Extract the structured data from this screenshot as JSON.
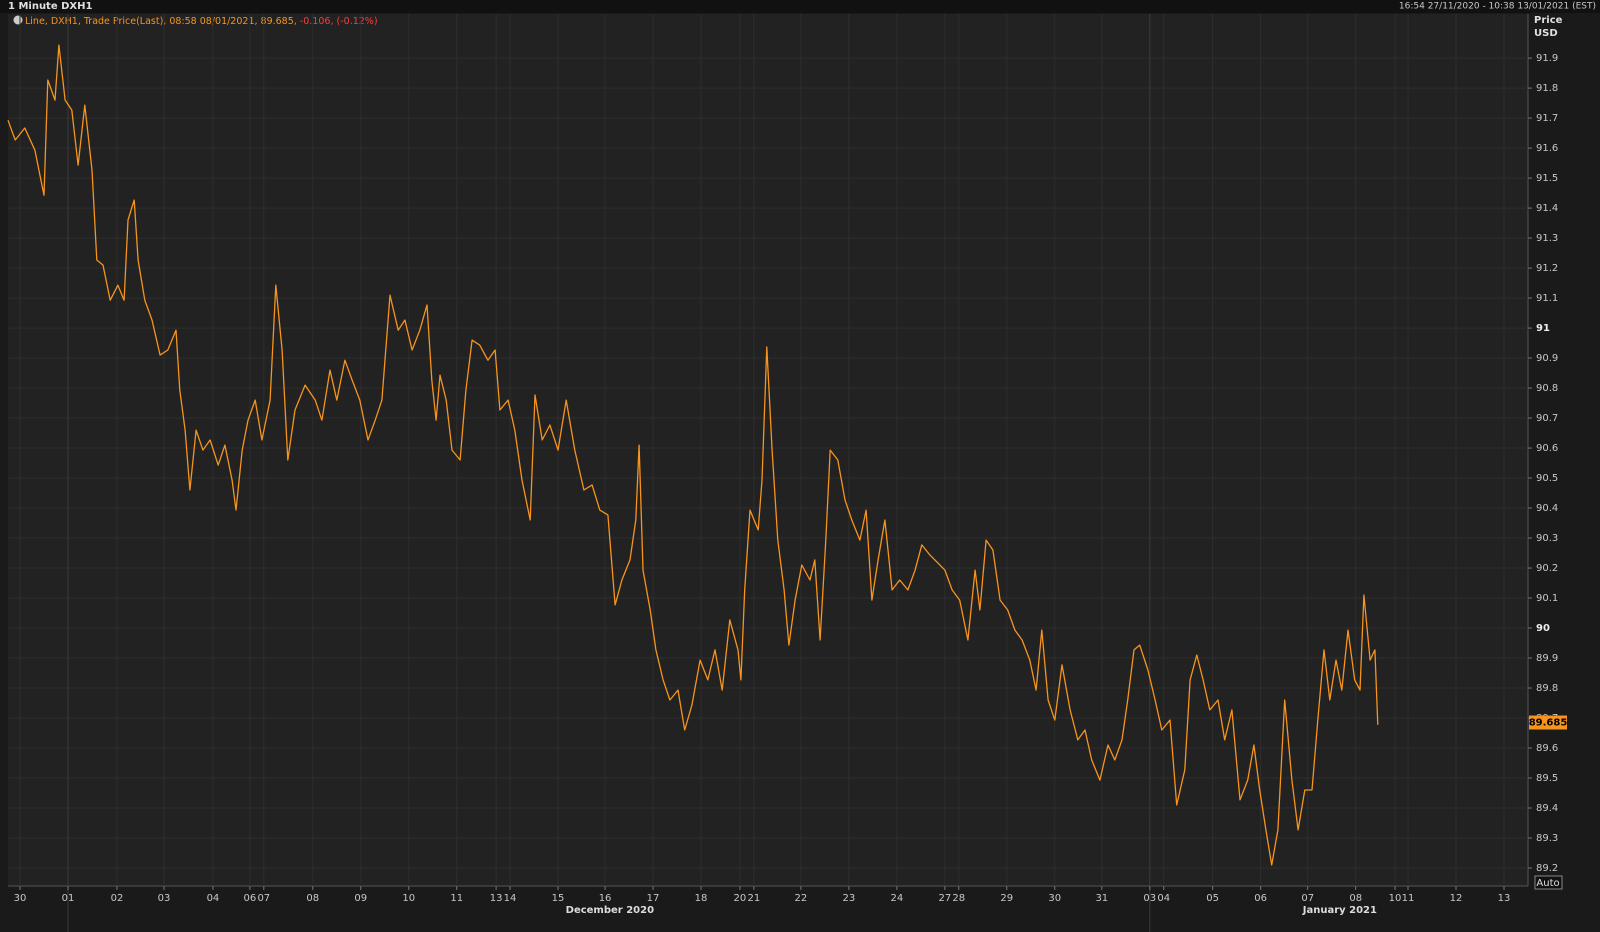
{
  "header": {
    "title": "1 Minute DXH1",
    "range": "16:54 27/11/2020 - 10:38 13/01/2021 (EST)"
  },
  "chart_data": {
    "type": "line",
    "legend": {
      "text": "Line, DXH1, Trade Price(Last), 08:58 08/01/2021, 89.685,",
      "change": "-0.106,",
      "change_pct": "(-0.12%)"
    },
    "y_axis_title": "Price",
    "y_axis_unit": "USD",
    "last_value": 89.685,
    "auto_button": "Auto",
    "grid": true,
    "xlim": [
      -0.25,
      31.42
    ],
    "ylim": [
      89.14,
      92.047
    ],
    "yticks": [
      89.2,
      89.3,
      89.4,
      89.5,
      89.6,
      89.7,
      89.8,
      89.9,
      90,
      90.1,
      90.2,
      90.3,
      90.4,
      90.5,
      90.6,
      90.7,
      90.8,
      90.9,
      91,
      91.1,
      91.2,
      91.3,
      91.4,
      91.5,
      91.6,
      91.7,
      91.8,
      91.9
    ],
    "xticks": [
      {
        "value": 0,
        "label": "30"
      },
      {
        "value": 1,
        "label": "01"
      },
      {
        "value": 2.02,
        "label": "02"
      },
      {
        "value": 3,
        "label": "03"
      },
      {
        "value": 4.02,
        "label": "04"
      },
      {
        "value": 4.79,
        "label": "06"
      },
      {
        "value": 5.08,
        "label": "07"
      },
      {
        "value": 6.1,
        "label": "08"
      },
      {
        "value": 7.1,
        "label": "09"
      },
      {
        "value": 8.1,
        "label": "10"
      },
      {
        "value": 9.1,
        "label": "11"
      },
      {
        "value": 9.92,
        "label": "13"
      },
      {
        "value": 10.21,
        "label": "14"
      },
      {
        "value": 11.21,
        "label": "15"
      },
      {
        "value": 12.19,
        "label": "16"
      },
      {
        "value": 13.19,
        "label": "17"
      },
      {
        "value": 14.19,
        "label": "18"
      },
      {
        "value": 15,
        "label": "20"
      },
      {
        "value": 15.29,
        "label": "21"
      },
      {
        "value": 16.27,
        "label": "22"
      },
      {
        "value": 17.27,
        "label": "23"
      },
      {
        "value": 18.27,
        "label": "24"
      },
      {
        "value": 19.27,
        "label": "27"
      },
      {
        "value": 19.56,
        "label": "28"
      },
      {
        "value": 20.56,
        "label": "29"
      },
      {
        "value": 21.56,
        "label": "30"
      },
      {
        "value": 22.54,
        "label": "31"
      },
      {
        "value": 23.54,
        "label": "03"
      },
      {
        "value": 23.83,
        "label": "04"
      },
      {
        "value": 24.85,
        "label": "05"
      },
      {
        "value": 25.85,
        "label": "06"
      },
      {
        "value": 26.83,
        "label": "07"
      },
      {
        "value": 27.83,
        "label": "08"
      },
      {
        "value": 28.65,
        "label": "10"
      },
      {
        "value": 28.92,
        "label": "11"
      },
      {
        "value": 29.92,
        "label": "12"
      },
      {
        "value": 30.92,
        "label": "13"
      }
    ],
    "months": [
      {
        "label": "December 2020",
        "start": 1,
        "center": 12.29
      },
      {
        "label": "January 2021",
        "start": 23.54,
        "center": 27.5
      }
    ],
    "series": [
      {
        "name": "DXH1",
        "color": "#f7941d",
        "x": [
          -0.25,
          -0.1,
          0.1,
          0.31,
          0.5,
          0.58,
          0.73,
          0.81,
          0.94,
          1.08,
          1.21,
          1.35,
          1.5,
          1.6,
          1.73,
          1.88,
          2.04,
          2.17,
          2.25,
          2.38,
          2.46,
          2.6,
          2.75,
          2.92,
          3.08,
          3.25,
          3.33,
          3.44,
          3.54,
          3.67,
          3.81,
          3.96,
          4.13,
          4.27,
          4.42,
          4.5,
          4.63,
          4.75,
          4.9,
          5.04,
          5.21,
          5.33,
          5.46,
          5.58,
          5.73,
          5.94,
          6.15,
          6.29,
          6.46,
          6.6,
          6.77,
          6.92,
          7.08,
          7.25,
          7.4,
          7.54,
          7.71,
          7.88,
          8.02,
          8.17,
          8.33,
          8.48,
          8.58,
          8.67,
          8.75,
          8.88,
          9.0,
          9.17,
          9.29,
          9.42,
          9.58,
          9.75,
          9.9,
          10.0,
          10.17,
          10.31,
          10.46,
          10.63,
          10.73,
          10.88,
          11.04,
          11.21,
          11.38,
          11.56,
          11.75,
          11.92,
          12.08,
          12.25,
          12.4,
          12.54,
          12.71,
          12.83,
          12.9,
          12.98,
          13.13,
          13.25,
          13.4,
          13.54,
          13.71,
          13.85,
          14.0,
          14.17,
          14.33,
          14.48,
          14.63,
          14.79,
          14.96,
          15.02,
          15.1,
          15.21,
          15.38,
          15.46,
          15.56,
          15.67,
          15.79,
          15.92,
          16.02,
          16.15,
          16.29,
          16.46,
          16.56,
          16.67,
          16.79,
          16.88,
          17.04,
          17.19,
          17.33,
          17.5,
          17.63,
          17.75,
          17.88,
          18.02,
          18.17,
          18.33,
          18.5,
          18.65,
          18.79,
          18.96,
          19.27,
          19.42,
          19.58,
          19.75,
          19.9,
          20.0,
          20.13,
          20.27,
          20.42,
          20.58,
          20.73,
          20.88,
          21.04,
          21.17,
          21.29,
          21.42,
          21.56,
          21.71,
          21.88,
          22.04,
          22.19,
          22.33,
          22.5,
          22.67,
          22.81,
          22.96,
          23.08,
          23.21,
          23.33,
          23.5,
          23.65,
          23.79,
          23.96,
          24.1,
          24.27,
          24.38,
          24.52,
          24.65,
          24.79,
          24.96,
          25.1,
          25.25,
          25.42,
          25.58,
          25.71,
          25.83,
          25.96,
          26.08,
          26.21,
          26.35,
          26.5,
          26.63,
          26.77,
          26.92,
          27.04,
          27.17,
          27.29,
          27.42,
          27.54,
          27.67,
          27.81,
          27.92,
          28.0,
          28.13,
          28.23,
          28.29
        ],
        "values": [
          91.693,
          91.627,
          91.667,
          91.593,
          91.443,
          91.827,
          91.76,
          91.943,
          91.76,
          91.727,
          91.543,
          91.743,
          91.527,
          91.227,
          91.21,
          91.093,
          91.143,
          91.093,
          91.36,
          91.427,
          91.227,
          91.093,
          91.027,
          90.91,
          90.927,
          90.993,
          90.793,
          90.66,
          90.46,
          90.66,
          90.593,
          90.627,
          90.543,
          90.61,
          90.493,
          90.393,
          90.593,
          90.693,
          90.76,
          90.627,
          90.76,
          91.143,
          90.927,
          90.56,
          90.727,
          90.81,
          90.76,
          90.693,
          90.86,
          90.76,
          90.893,
          90.827,
          90.76,
          90.627,
          90.693,
          90.76,
          91.11,
          90.993,
          91.027,
          90.927,
          90.993,
          91.077,
          90.827,
          90.693,
          90.843,
          90.76,
          90.593,
          90.56,
          90.793,
          90.96,
          90.943,
          90.893,
          90.927,
          90.727,
          90.76,
          90.66,
          90.493,
          90.36,
          90.777,
          90.627,
          90.677,
          90.593,
          90.76,
          90.593,
          90.46,
          90.477,
          90.393,
          90.377,
          90.077,
          90.16,
          90.227,
          90.36,
          90.61,
          90.193,
          90.06,
          89.927,
          89.827,
          89.76,
          89.793,
          89.66,
          89.743,
          89.893,
          89.827,
          89.927,
          89.793,
          90.027,
          89.927,
          89.827,
          90.127,
          90.393,
          90.327,
          90.493,
          90.937,
          90.593,
          90.293,
          90.127,
          89.943,
          90.093,
          90.21,
          90.16,
          90.227,
          89.96,
          90.293,
          90.593,
          90.56,
          90.427,
          90.36,
          90.293,
          90.393,
          90.093,
          90.227,
          90.36,
          90.127,
          90.16,
          90.127,
          90.193,
          90.277,
          90.243,
          90.193,
          90.127,
          90.093,
          89.96,
          90.193,
          90.06,
          90.293,
          90.26,
          90.093,
          90.06,
          89.993,
          89.96,
          89.893,
          89.793,
          89.993,
          89.76,
          89.693,
          89.877,
          89.727,
          89.627,
          89.66,
          89.56,
          89.493,
          89.61,
          89.56,
          89.627,
          89.76,
          89.927,
          89.943,
          89.86,
          89.76,
          89.66,
          89.693,
          89.41,
          89.527,
          89.827,
          89.91,
          89.827,
          89.727,
          89.76,
          89.627,
          89.727,
          89.427,
          89.493,
          89.61,
          89.46,
          89.327,
          89.21,
          89.327,
          89.76,
          89.493,
          89.327,
          89.46,
          89.46,
          89.693,
          89.927,
          89.76,
          89.893,
          89.793,
          89.993,
          89.827,
          89.793,
          90.11,
          89.893,
          89.927,
          89.677
        ]
      }
    ]
  }
}
